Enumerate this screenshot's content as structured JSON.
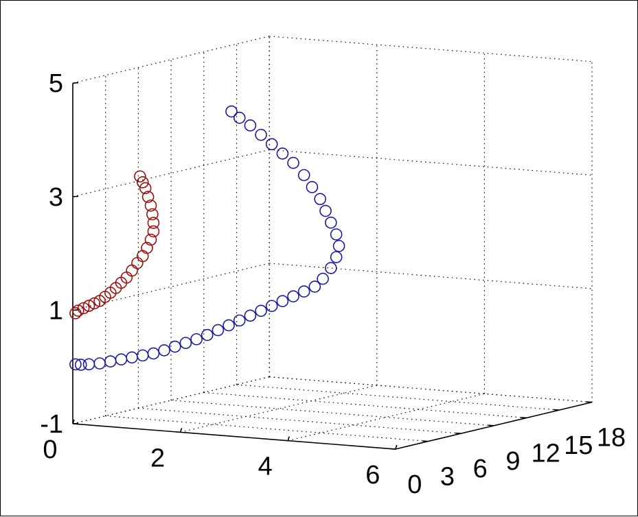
{
  "chart_data": {
    "type": "scatter3d",
    "title": "",
    "xlabel": "",
    "ylabel": "",
    "zlabel": "",
    "xlim": [
      0,
      6
    ],
    "ylim": [
      0,
      18
    ],
    "zlim": [
      -1,
      5
    ],
    "x_ticks": [
      "0",
      "2",
      "4",
      "6"
    ],
    "y_ticks": [
      "0",
      "3",
      "6",
      "9",
      "12",
      "15",
      "18"
    ],
    "z_ticks": [
      "-1",
      "1",
      "3",
      "5"
    ],
    "grid": true,
    "marker": "open-circle",
    "series": [
      {
        "color": "#1a1aa6",
        "points": [
          [
            0.05,
            0,
            0.05
          ],
          [
            0.15,
            0,
            0.05
          ],
          [
            0.3,
            0,
            0.07
          ],
          [
            0.5,
            0,
            0.1
          ],
          [
            0.7,
            0,
            0.15
          ],
          [
            0.9,
            0,
            0.2
          ],
          [
            1.1,
            0,
            0.25
          ],
          [
            1.3,
            0,
            0.3
          ],
          [
            1.5,
            0,
            0.35
          ],
          [
            1.7,
            0,
            0.42
          ],
          [
            1.9,
            0,
            0.5
          ],
          [
            2.1,
            0,
            0.58
          ],
          [
            2.3,
            0,
            0.66
          ],
          [
            2.5,
            0,
            0.75
          ],
          [
            2.7,
            0,
            0.85
          ],
          [
            2.9,
            0,
            0.95
          ],
          [
            3.1,
            0,
            1.05
          ],
          [
            3.3,
            0,
            1.15
          ],
          [
            3.5,
            0,
            1.25
          ],
          [
            3.7,
            0,
            1.35
          ],
          [
            3.9,
            0,
            1.45
          ],
          [
            4.1,
            0,
            1.55
          ],
          [
            4.3,
            0,
            1.65
          ],
          [
            4.5,
            0,
            1.75
          ],
          [
            4.65,
            0,
            1.9
          ],
          [
            4.8,
            0,
            2.1
          ],
          [
            4.9,
            0,
            2.3
          ],
          [
            4.95,
            0,
            2.5
          ],
          [
            4.9,
            0,
            2.7
          ],
          [
            4.8,
            0,
            2.9
          ],
          [
            4.7,
            0,
            3.1
          ],
          [
            4.6,
            0,
            3.3
          ],
          [
            4.45,
            0,
            3.5
          ],
          [
            4.3,
            0,
            3.7
          ],
          [
            4.1,
            0,
            3.9
          ],
          [
            3.9,
            0,
            4.05
          ],
          [
            3.7,
            0,
            4.2
          ],
          [
            3.5,
            0,
            4.35
          ],
          [
            3.3,
            0,
            4.5
          ],
          [
            3.1,
            0,
            4.62
          ],
          [
            2.95,
            0,
            4.72
          ]
        ]
      },
      {
        "color": "#9e1010",
        "points": [
          [
            0.05,
            0,
            0.95
          ],
          [
            0.1,
            0,
            1.0
          ],
          [
            0.2,
            0,
            1.05
          ],
          [
            0.3,
            0,
            1.1
          ],
          [
            0.4,
            0,
            1.15
          ],
          [
            0.5,
            0,
            1.2
          ],
          [
            0.6,
            0,
            1.28
          ],
          [
            0.7,
            0,
            1.36
          ],
          [
            0.8,
            0,
            1.45
          ],
          [
            0.9,
            0,
            1.55
          ],
          [
            1.0,
            0,
            1.65
          ],
          [
            1.1,
            0,
            1.78
          ],
          [
            1.2,
            0,
            1.92
          ],
          [
            1.3,
            0,
            2.05
          ],
          [
            1.38,
            0,
            2.2
          ],
          [
            1.45,
            0,
            2.35
          ],
          [
            1.5,
            0,
            2.5
          ],
          [
            1.5,
            0,
            2.65
          ],
          [
            1.48,
            0,
            2.8
          ],
          [
            1.45,
            0,
            2.95
          ],
          [
            1.4,
            0,
            3.1
          ],
          [
            1.35,
            0,
            3.25
          ],
          [
            1.3,
            0,
            3.35
          ],
          [
            1.25,
            0,
            3.45
          ]
        ]
      }
    ]
  }
}
